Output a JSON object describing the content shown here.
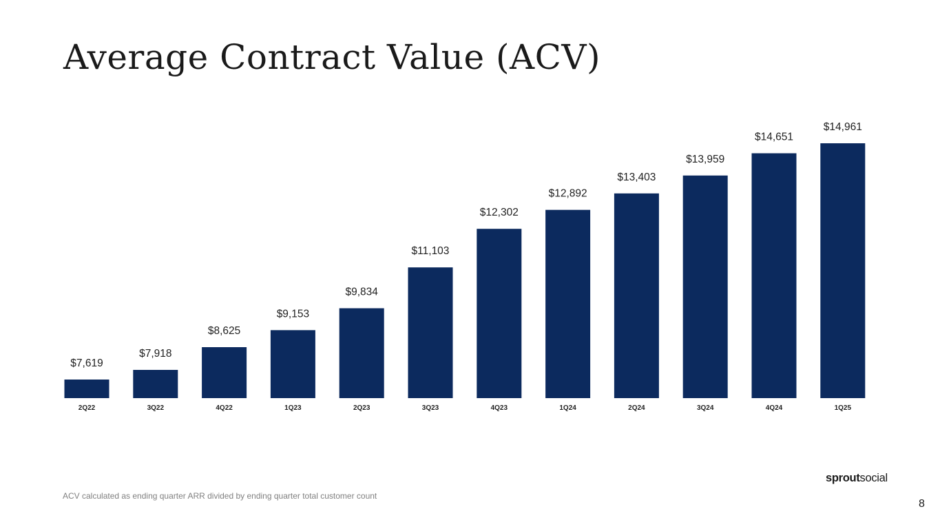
{
  "slide": {
    "title": "Average Contract Value (ACV)",
    "footnote": "ACV calculated as ending quarter ARR divided by ending quarter total customer count",
    "page_number": "8"
  },
  "logo": {
    "part1": "sprout",
    "part2": "social"
  },
  "colors": {
    "bar": "#0c2a5e",
    "text": "#1f1f1f",
    "footnote": "#808080"
  },
  "chart_data": {
    "type": "bar",
    "title": "Average Contract Value (ACV)",
    "categories": [
      "2Q22",
      "3Q22",
      "4Q22",
      "1Q23",
      "2Q23",
      "3Q23",
      "4Q23",
      "1Q24",
      "2Q24",
      "3Q24",
      "4Q24",
      "1Q25"
    ],
    "values": [
      7619,
      7918,
      8625,
      9153,
      9834,
      11103,
      12302,
      12892,
      13403,
      13959,
      14651,
      14961
    ],
    "value_labels": [
      "$7,619",
      "$7,918",
      "$8,625",
      "$9,153",
      "$9,834",
      "$11,103",
      "$12,302",
      "$12,892",
      "$13,403",
      "$13,959",
      "$14,651",
      "$14,961"
    ],
    "xlabel": "",
    "ylabel": "",
    "ylim": [
      7000,
      15000
    ],
    "grid": false,
    "legend": "none"
  }
}
